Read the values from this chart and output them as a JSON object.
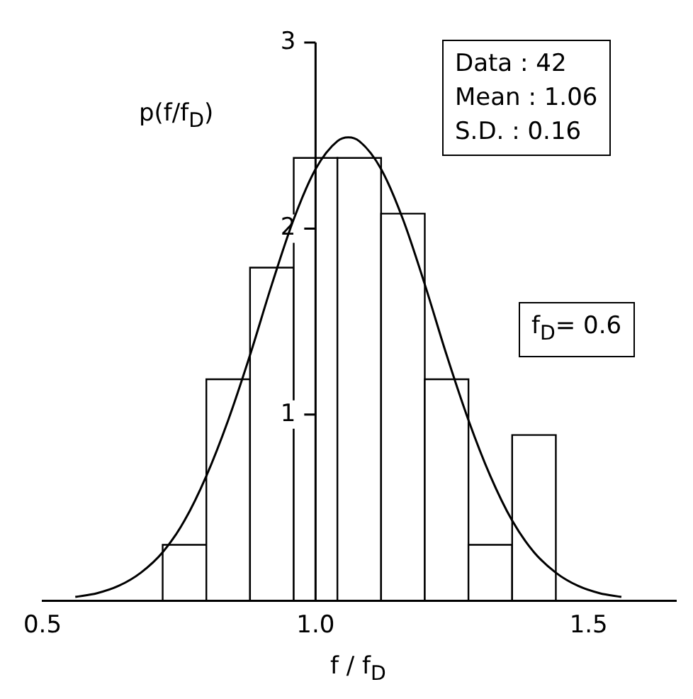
{
  "chart_data": {
    "type": "histogram",
    "xlabel": "f / f$_{D}$",
    "ylabel": "p(f/f$_{D}$)",
    "bins": [
      0.72,
      0.8,
      0.88,
      0.96,
      1.04,
      1.12,
      1.2,
      1.28,
      1.36,
      1.44
    ],
    "values": [
      0.3,
      1.19,
      1.79,
      2.38,
      2.38,
      2.08,
      1.19,
      0.3,
      0.89
    ],
    "color": "#000000",
    "series": [
      {
        "type": "line",
        "color": "#000000",
        "x": [
          0.56,
          0.6,
          0.64,
          0.68,
          0.72,
          0.76,
          0.8,
          0.84,
          0.88,
          0.92,
          0.96,
          1.0,
          1.04,
          1.06,
          1.08,
          1.12,
          1.16,
          1.2,
          1.24,
          1.28,
          1.32,
          1.36,
          1.4,
          1.44,
          1.48,
          1.52,
          1.56
        ],
        "values": [
          0.02,
          0.04,
          0.08,
          0.15,
          0.26,
          0.43,
          0.67,
          0.97,
          1.32,
          1.7,
          2.05,
          2.32,
          2.47,
          2.49,
          2.47,
          2.32,
          2.05,
          1.7,
          1.32,
          0.97,
          0.67,
          0.43,
          0.26,
          0.15,
          0.08,
          0.04,
          0.02
        ]
      }
    ],
    "xlim": [
      0.5,
      1.66
    ],
    "xticks": [
      0.5,
      {
        "value": 1,
        "label": "1.0"
      },
      1.5
    ],
    "ylim": [
      0,
      3
    ],
    "yticks": [
      1,
      2,
      3
    ],
    "grid": false,
    "legend": false,
    "marker": "none",
    "line_style": "solid",
    "annotations": [
      "Data : 42",
      "Mean : 1.06",
      "S.D. : 0.16",
      "f$_{D}$= 0.6"
    ]
  }
}
